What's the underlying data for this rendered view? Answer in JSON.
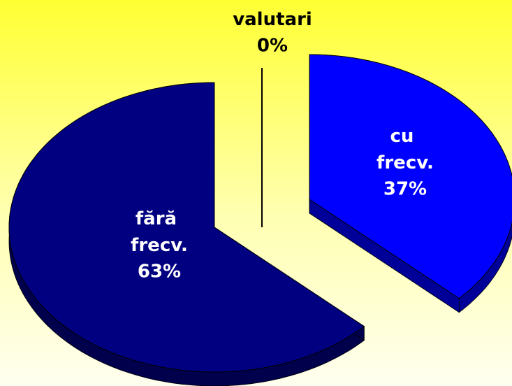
{
  "chart_data": {
    "type": "pie",
    "categories": [
      "cu frecv.",
      "valutari",
      "fără frecv."
    ],
    "values": [
      37,
      0,
      63
    ],
    "value_labels": [
      "37%",
      "0%",
      "63%"
    ],
    "colors": [
      "#0000ff",
      "#000000",
      "#000080"
    ]
  }
}
